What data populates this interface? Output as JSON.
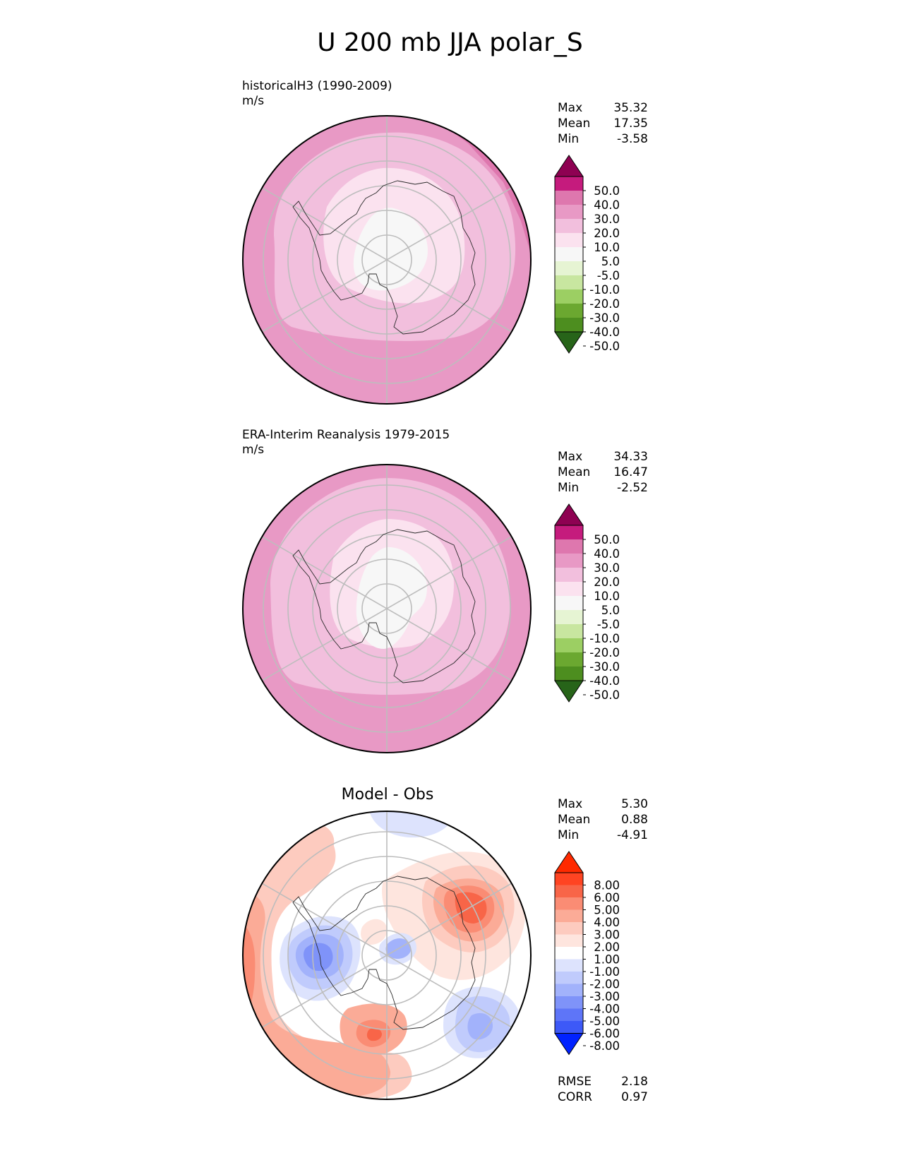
{
  "figure": {
    "title": "U 200 mb JJA polar_S"
  },
  "chart_data": [
    {
      "type": "heatmap",
      "projection": "south polar stereographic",
      "title": "historicalH3 (1990-2009)",
      "units": "m/s",
      "stats": [
        {
          "label": "Max",
          "value": "35.32"
        },
        {
          "label": "Mean",
          "value": "17.35"
        },
        {
          "label": "Min",
          "value": "-3.58"
        }
      ],
      "colorbar": {
        "ticks": [
          "50.0",
          "40.0",
          "30.0",
          "20.0",
          "10.0",
          "5.0",
          "-5.0",
          "-10.0",
          "-20.0",
          "-30.0",
          "-40.0",
          "-50.0"
        ],
        "colors": [
          "#8e0152",
          "#c51b7d",
          "#de77ae",
          "#e899c5",
          "#f2bfdd",
          "#fbe2ef",
          "#f7f7f7",
          "#e6f4d3",
          "#c8e6a0",
          "#9ccf63",
          "#6ba830",
          "#4d8e1f",
          "#276419"
        ],
        "extend": "both"
      },
      "field_levels": [
        {
          "label": "30.0-40.0",
          "color": "#de77ae"
        },
        {
          "label": "20.0-30.0",
          "color": "#e899c5"
        },
        {
          "label": "10.0-20.0",
          "color": "#f2bfdd"
        },
        {
          "label": "5.0-10.0",
          "color": "#fbe2ef"
        },
        {
          "label": "-5.0-5.0",
          "color": "#f7f7f7"
        }
      ]
    },
    {
      "type": "heatmap",
      "projection": "south polar stereographic",
      "title": "ERA-Interim Reanalysis 1979-2015",
      "units": "m/s",
      "stats": [
        {
          "label": "Max",
          "value": "34.33"
        },
        {
          "label": "Mean",
          "value": "16.47"
        },
        {
          "label": "Min",
          "value": "-2.52"
        }
      ],
      "colorbar": {
        "ticks": [
          "50.0",
          "40.0",
          "30.0",
          "20.0",
          "10.0",
          "5.0",
          "-5.0",
          "-10.0",
          "-20.0",
          "-30.0",
          "-40.0",
          "-50.0"
        ],
        "colors": [
          "#8e0152",
          "#c51b7d",
          "#de77ae",
          "#e899c5",
          "#f2bfdd",
          "#fbe2ef",
          "#f7f7f7",
          "#e6f4d3",
          "#c8e6a0",
          "#9ccf63",
          "#6ba830",
          "#4d8e1f",
          "#276419"
        ],
        "extend": "both"
      }
    },
    {
      "type": "heatmap",
      "projection": "south polar stereographic",
      "title": "Model - Obs",
      "stats": [
        {
          "label": "Max",
          "value": "5.30"
        },
        {
          "label": "Mean",
          "value": "0.88"
        },
        {
          "label": "Min",
          "value": "-4.91"
        }
      ],
      "metrics": [
        {
          "label": "RMSE",
          "value": "2.18"
        },
        {
          "label": "CORR",
          "value": "0.97"
        }
      ],
      "colorbar": {
        "ticks": [
          "8.00",
          "6.00",
          "5.00",
          "4.00",
          "3.00",
          "2.00",
          "1.00",
          "-1.00",
          "-2.00",
          "-3.00",
          "-4.00",
          "-5.00",
          "-6.00",
          "-8.00"
        ],
        "colors": [
          "#ff2a00",
          "#ff4422",
          "#f86548",
          "#fa8c74",
          "#fbab97",
          "#fdcbbf",
          "#fee5de",
          "#ffffff",
          "#dde3fd",
          "#c0cbfc",
          "#a2b2fb",
          "#7f93f9",
          "#5e75f8",
          "#3d59f7",
          "#0022ff"
        ],
        "extend": "both"
      }
    }
  ]
}
